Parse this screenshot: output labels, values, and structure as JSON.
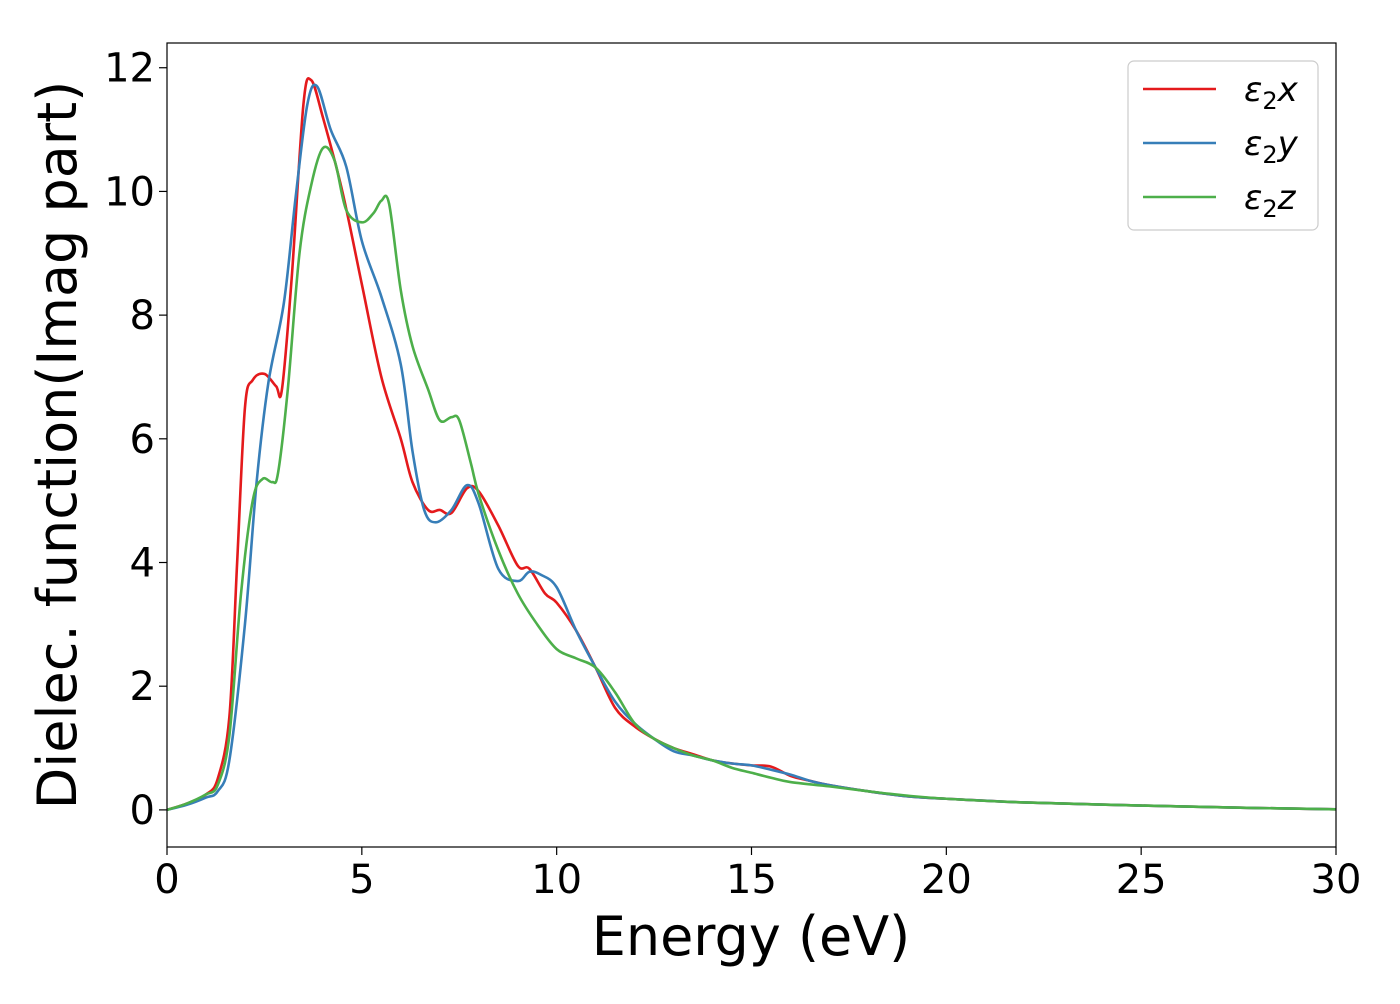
{
  "chart_data": {
    "type": "line",
    "xlabel": "Energy (eV)",
    "ylabel": "Dielec. function(Imag part)",
    "xlim": [
      0,
      30
    ],
    "ylim": [
      -0.6,
      12.4
    ],
    "xticks": [
      0,
      5,
      10,
      15,
      20,
      25,
      30
    ],
    "yticks": [
      0,
      2,
      4,
      6,
      8,
      10,
      12
    ],
    "grid": false,
    "legend_position": "top-right",
    "series": [
      {
        "name": "ε2x",
        "legend": {
          "base": "ε",
          "sub": "2",
          "suffix": "x"
        },
        "color": "#e41a1c",
        "x": [
          0,
          0.5,
          1.0,
          1.3,
          1.6,
          1.8,
          2.0,
          2.2,
          2.5,
          2.8,
          2.95,
          3.2,
          3.5,
          3.7,
          4.0,
          4.5,
          5.0,
          5.5,
          6.0,
          6.3,
          6.7,
          7.0,
          7.3,
          7.7,
          8.0,
          8.5,
          9.0,
          9.3,
          9.7,
          10.0,
          10.5,
          11.0,
          11.5,
          12.0,
          12.5,
          13.0,
          13.5,
          14.0,
          14.5,
          15.0,
          15.5,
          16.0,
          16.5,
          17.0,
          18.0,
          19.0,
          20.0,
          22.0,
          25.0,
          28.0,
          30.0
        ],
        "y": [
          0,
          0.1,
          0.25,
          0.5,
          1.5,
          4.0,
          6.5,
          6.95,
          7.05,
          6.85,
          6.8,
          8.6,
          11.4,
          11.8,
          11.2,
          10.0,
          8.5,
          7.0,
          6.0,
          5.3,
          4.85,
          4.85,
          4.8,
          5.2,
          5.15,
          4.6,
          3.95,
          3.9,
          3.5,
          3.35,
          2.9,
          2.3,
          1.65,
          1.35,
          1.15,
          1.0,
          0.9,
          0.8,
          0.75,
          0.72,
          0.7,
          0.55,
          0.47,
          0.4,
          0.3,
          0.22,
          0.18,
          0.12,
          0.07,
          0.03,
          0.01
        ]
      },
      {
        "name": "ε2y",
        "legend": {
          "base": "ε",
          "sub": "2",
          "suffix": "y"
        },
        "color": "#377eb8",
        "x": [
          0,
          0.5,
          1.0,
          1.3,
          1.6,
          2.0,
          2.3,
          2.6,
          3.0,
          3.3,
          3.6,
          3.85,
          4.2,
          4.6,
          5.0,
          5.5,
          6.0,
          6.3,
          6.6,
          6.9,
          7.3,
          7.7,
          8.0,
          8.5,
          9.0,
          9.3,
          9.6,
          10.0,
          10.5,
          11.0,
          11.5,
          12.0,
          12.5,
          13.0,
          13.5,
          14.0,
          14.5,
          15.0,
          15.5,
          16.0,
          16.5,
          17.0,
          18.0,
          19.0,
          20.0,
          22.0,
          25.0,
          28.0,
          30.0
        ],
        "y": [
          0,
          0.08,
          0.2,
          0.3,
          0.8,
          3.0,
          5.3,
          6.9,
          8.2,
          9.9,
          11.4,
          11.7,
          11.0,
          10.4,
          9.2,
          8.3,
          7.2,
          5.8,
          4.85,
          4.65,
          4.85,
          5.25,
          4.95,
          3.9,
          3.7,
          3.85,
          3.8,
          3.6,
          2.9,
          2.3,
          1.75,
          1.4,
          1.15,
          0.95,
          0.88,
          0.8,
          0.75,
          0.72,
          0.65,
          0.57,
          0.47,
          0.4,
          0.3,
          0.22,
          0.18,
          0.12,
          0.07,
          0.03,
          0.01
        ]
      },
      {
        "name": "ε2z",
        "legend": {
          "base": "ε",
          "sub": "2",
          "suffix": "z"
        },
        "color": "#4daf4a",
        "x": [
          0,
          0.5,
          1.0,
          1.3,
          1.6,
          1.9,
          2.2,
          2.45,
          2.7,
          2.85,
          3.1,
          3.4,
          3.7,
          4.0,
          4.3,
          4.6,
          5.0,
          5.3,
          5.5,
          5.7,
          6.0,
          6.3,
          6.7,
          7.0,
          7.3,
          7.5,
          7.8,
          8.0,
          8.5,
          9.0,
          9.5,
          10.0,
          10.5,
          11.0,
          11.5,
          12.0,
          12.5,
          13.0,
          13.5,
          14.0,
          14.5,
          15.0,
          15.5,
          16.0,
          17.0,
          18.0,
          19.0,
          20.0,
          22.0,
          25.0,
          28.0,
          30.0
        ],
        "y": [
          0,
          0.1,
          0.25,
          0.4,
          1.2,
          3.5,
          5.0,
          5.35,
          5.3,
          5.45,
          6.8,
          9.0,
          10.1,
          10.7,
          10.5,
          9.7,
          9.5,
          9.65,
          9.85,
          9.8,
          8.4,
          7.5,
          6.8,
          6.3,
          6.35,
          6.3,
          5.6,
          5.1,
          4.2,
          3.5,
          3.0,
          2.6,
          2.45,
          2.3,
          1.9,
          1.4,
          1.15,
          1.0,
          0.88,
          0.8,
          0.68,
          0.6,
          0.52,
          0.45,
          0.38,
          0.3,
          0.23,
          0.18,
          0.12,
          0.07,
          0.03,
          0.01
        ]
      }
    ]
  }
}
